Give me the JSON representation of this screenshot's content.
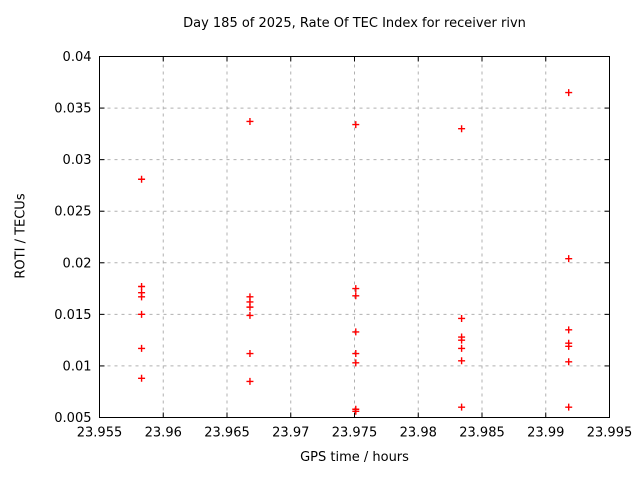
{
  "colors": {
    "marker": "#ff0000",
    "grid": "#b0b0b0",
    "border": "#000000",
    "background": "#ffffff",
    "text": "#000000"
  },
  "chart_data": {
    "type": "scatter",
    "title": "Day 185 of 2025, Rate Of TEC Index for receiver rivn",
    "xlabel": "GPS time / hours",
    "ylabel": "ROTI / TECUs",
    "xlim": [
      23.955,
      23.995
    ],
    "ylim": [
      0.005,
      0.04
    ],
    "xticks": [
      23.955,
      23.96,
      23.965,
      23.97,
      23.975,
      23.98,
      23.985,
      23.99,
      23.995
    ],
    "xtick_labels": [
      "23.955",
      "23.96",
      "23.965",
      "23.97",
      "23.975",
      "23.98",
      "23.985",
      "23.99",
      "23.995"
    ],
    "yticks": [
      0.005,
      0.01,
      0.015,
      0.02,
      0.025,
      0.03,
      0.035,
      0.04
    ],
    "ytick_labels": [
      "0.005",
      "0.01",
      "0.015",
      "0.02",
      "0.025",
      "0.03",
      "0.035",
      "0.04"
    ],
    "grid": true,
    "legend": null,
    "marker": "plus",
    "series": [
      {
        "name": "ROTI",
        "color": "#ff0000",
        "points": [
          [
            23.9583,
            0.0281
          ],
          [
            23.9583,
            0.0177
          ],
          [
            23.9583,
            0.0171
          ],
          [
            23.9583,
            0.0167
          ],
          [
            23.9583,
            0.015
          ],
          [
            23.9583,
            0.0117
          ],
          [
            23.9583,
            0.0088
          ],
          [
            23.9668,
            0.0337
          ],
          [
            23.9668,
            0.0167
          ],
          [
            23.9668,
            0.0162
          ],
          [
            23.9668,
            0.0157
          ],
          [
            23.9668,
            0.0149
          ],
          [
            23.9668,
            0.0112
          ],
          [
            23.9668,
            0.0085
          ],
          [
            23.9751,
            0.0334
          ],
          [
            23.9751,
            0.0175
          ],
          [
            23.9751,
            0.0168
          ],
          [
            23.9751,
            0.0133
          ],
          [
            23.9751,
            0.0112
          ],
          [
            23.9751,
            0.0103
          ],
          [
            23.9751,
            0.0058
          ],
          [
            23.9751,
            0.0056
          ],
          [
            23.9834,
            0.033
          ],
          [
            23.9834,
            0.0146
          ],
          [
            23.9834,
            0.0128
          ],
          [
            23.9834,
            0.0125
          ],
          [
            23.9834,
            0.0117
          ],
          [
            23.9834,
            0.0105
          ],
          [
            23.9834,
            0.006
          ],
          [
            23.9918,
            0.0365
          ],
          [
            23.9918,
            0.0204
          ],
          [
            23.9918,
            0.0135
          ],
          [
            23.9918,
            0.0122
          ],
          [
            23.9918,
            0.0119
          ],
          [
            23.9918,
            0.0104
          ],
          [
            23.9918,
            0.006
          ]
        ]
      }
    ]
  }
}
